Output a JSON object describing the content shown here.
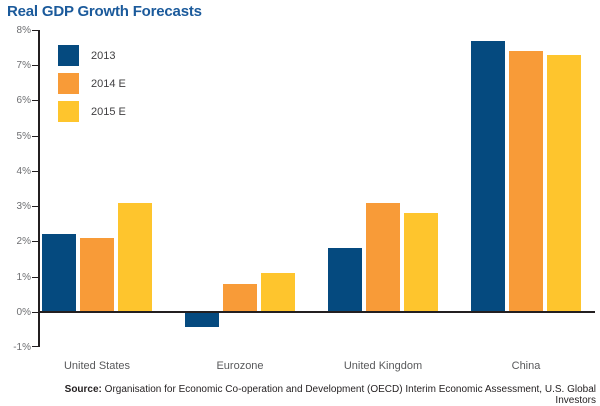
{
  "title": "Real GDP Growth Forecasts",
  "source": {
    "label": "Source:",
    "text": " Organisation for Economic Co-operation and Development (OECD) Interim Economic Assessment, U.S. Global Investors"
  },
  "colors": {
    "title_blue": "#1b5a9b",
    "axis_black": "#231f20",
    "tick_gray": "#6d6e71",
    "category_gray": "#58595b"
  },
  "chart_data": {
    "type": "bar",
    "title": "Real GDP Growth Forecasts",
    "categories": [
      "United States",
      "Eurozone",
      "United Kingdom",
      "China"
    ],
    "series": [
      {
        "name": "2013",
        "color": "#054a7f",
        "values": [
          2.2,
          -0.4,
          1.8,
          7.7
        ]
      },
      {
        "name": "2014 E",
        "color": "#f89b38",
        "values": [
          2.1,
          0.8,
          3.1,
          7.4
        ]
      },
      {
        "name": "2015 E",
        "color": "#fec52d",
        "values": [
          3.1,
          1.1,
          2.8,
          7.3
        ]
      }
    ],
    "xlabel": "",
    "ylabel": "",
    "ylim": [
      -1,
      8
    ],
    "ytick_step": 1,
    "ytick_suffix": "%",
    "grid": false,
    "legend_position": "top-left"
  }
}
